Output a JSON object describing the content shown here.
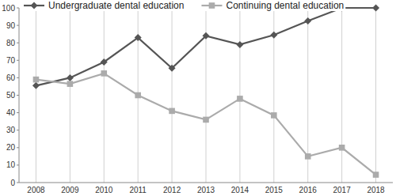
{
  "chart_data": {
    "type": "line",
    "categories": [
      "2008",
      "2009",
      "2010",
      "2011",
      "2012",
      "2013",
      "2014",
      "2015",
      "2016",
      "2017",
      "2018"
    ],
    "series": [
      {
        "name": "Undergraduate dental education",
        "color": "#555555",
        "marker": "diamond",
        "values": [
          55.5,
          60,
          69,
          83,
          65.5,
          84,
          79,
          84.5,
          92.5,
          100,
          100
        ]
      },
      {
        "name": "Continuing dental education",
        "color": "#ababab",
        "marker": "square",
        "values": [
          59,
          56.5,
          62.5,
          50,
          41,
          36,
          48,
          38.5,
          15,
          20,
          4.5
        ]
      }
    ],
    "ylim": [
      0,
      100
    ],
    "yticks": [
      0,
      10,
      20,
      30,
      40,
      50,
      60,
      70,
      80,
      90,
      100
    ],
    "grid": true,
    "legend": "top"
  }
}
